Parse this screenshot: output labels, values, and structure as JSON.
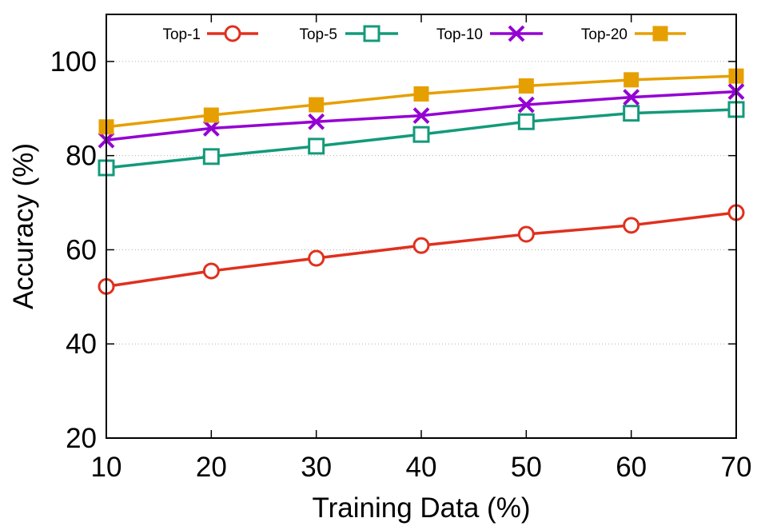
{
  "chart_data": {
    "type": "line",
    "title": "",
    "xlabel": "Training Data (%)",
    "ylabel": "Accuracy (%)",
    "x": [
      10,
      20,
      30,
      40,
      50,
      60,
      70
    ],
    "xlim": [
      10,
      70
    ],
    "ylim": [
      20,
      110
    ],
    "xticks": [
      10,
      20,
      30,
      40,
      50,
      60,
      70
    ],
    "yticks": [
      20,
      40,
      60,
      80,
      100
    ],
    "grid": "horizontal dotted",
    "legend_position": "top",
    "series": [
      {
        "name": "Top-1",
        "color": "#e0301e",
        "marker": "open-circle",
        "values": [
          52.2,
          55.5,
          58.2,
          60.9,
          63.3,
          65.2,
          67.9
        ]
      },
      {
        "name": "Top-5",
        "color": "#139a7a",
        "marker": "open-square",
        "values": [
          77.4,
          79.8,
          82.0,
          84.5,
          87.2,
          89.0,
          89.8
        ]
      },
      {
        "name": "Top-10",
        "color": "#9400d3",
        "marker": "x",
        "values": [
          83.3,
          85.8,
          87.2,
          88.5,
          90.8,
          92.4,
          93.6
        ]
      },
      {
        "name": "Top-20",
        "color": "#e69f00",
        "marker": "filled-square",
        "values": [
          86.1,
          88.6,
          90.8,
          93.1,
          94.8,
          96.1,
          96.9
        ]
      }
    ]
  }
}
